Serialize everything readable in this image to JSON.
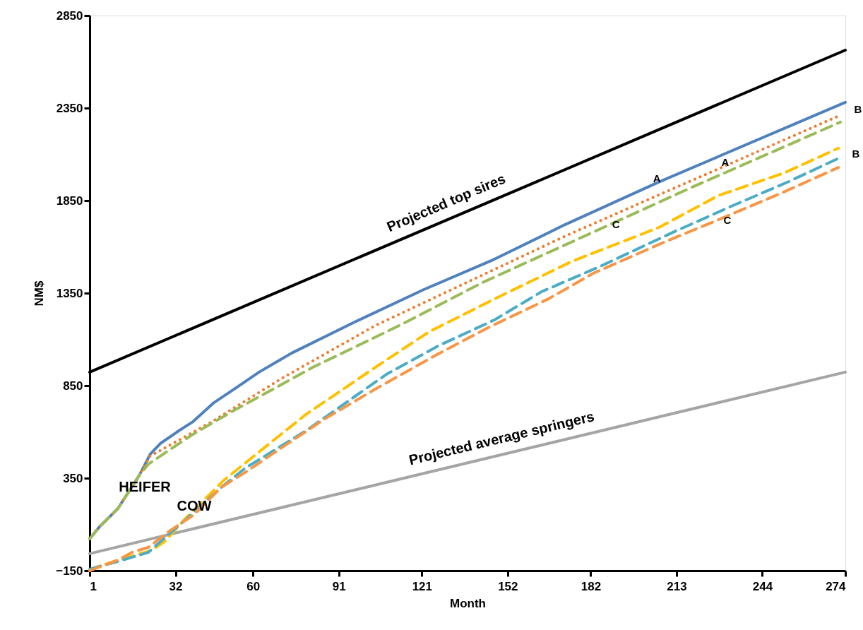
{
  "chart_data": {
    "type": "line",
    "xlabel": "Month",
    "ylabel": "NM$",
    "xlim": [
      1,
      274
    ],
    "xticks": [
      1,
      32,
      60,
      91,
      121,
      152,
      182,
      213,
      244,
      274
    ],
    "ylim": [
      -150,
      2850
    ],
    "yticks": [
      -150,
      350,
      850,
      1350,
      1850,
      2350,
      2850
    ],
    "grid": false,
    "legend": false,
    "marker": "none",
    "series": [
      {
        "name": "Projected top sires",
        "color": "#000000",
        "line_style": "solid",
        "x": [
          1,
          274
        ],
        "values": [
          923,
          2663
        ]
      },
      {
        "name": "Projected average springers",
        "color": "#a5a5a5",
        "line_style": "solid",
        "x": [
          1,
          274
        ],
        "values": [
          -58,
          923
        ]
      },
      {
        "color": "#4f81bd",
        "line_style": "solid",
        "x": [
          1,
          4.3,
          11.2,
          18.9,
          22.9,
          26.5,
          32.4,
          38.3,
          45.9,
          53.6,
          62.2,
          74,
          96.2,
          121.7,
          147.2,
          172.7,
          206.4,
          274
        ],
        "values": [
          22,
          83,
          186,
          365,
          480,
          537,
          598,
          655,
          758,
          835,
          923,
          1026,
          1190,
          1369,
          1533,
          1720,
          1949,
          2381
        ]
      },
      {
        "color": "#ed7d31",
        "line_style": "dotted",
        "x": [
          1,
          4.3,
          11.2,
          18.9,
          22.9,
          25.5,
          45.1,
          70.7,
          104.6,
          138.8,
          173.5,
          210.2,
          271.7
        ],
        "values": [
          22,
          83,
          186,
          365,
          472,
          491,
          655,
          892,
          1178,
          1419,
          1663,
          1904,
          2308
        ]
      },
      {
        "color": "#9bbb59",
        "line_style": "dashed",
        "x": [
          1,
          4.3,
          11.2,
          18.9,
          22.2,
          38.3,
          53.6,
          66.3,
          81.6,
          113.3,
          142.9,
          172.7,
          218.7,
          272.2
        ],
        "values": [
          22,
          83,
          186,
          365,
          426,
          587,
          720,
          823,
          949,
          1178,
          1407,
          1610,
          1923,
          2274
        ]
      },
      {
        "color": "#ffc000",
        "line_style": "dashed",
        "x": [
          1,
          1.8,
          11.2,
          22.9,
          28,
          34.9,
          49.5,
          61.2,
          79.1,
          103.1,
          123.5,
          149,
          175.3,
          206.7,
          228.1,
          251.8,
          271.5
        ],
        "values": [
          -150,
          -139,
          -93,
          -43,
          6,
          121,
          339,
          480,
          694,
          938,
          1140,
          1331,
          1522,
          1705,
          1877,
          1999,
          2133
        ]
      },
      {
        "color": "#4bacc6",
        "line_style": "dashed",
        "x": [
          1,
          11.2,
          22.2,
          30.6,
          38.3,
          48.5,
          57.1,
          79.1,
          108.2,
          126.8,
          147.2,
          164.3,
          185.5,
          212.8,
          234,
          253.6,
          272.2
        ],
        "values": [
          -142,
          -100,
          -51,
          60,
          159,
          300,
          403,
          606,
          911,
          1064,
          1205,
          1358,
          1495,
          1686,
          1827,
          1953,
          2083
        ]
      },
      {
        "color": "#f79646",
        "line_style": "dashed",
        "x": [
          1,
          11.2,
          16.3,
          22.2,
          29.8,
          38.3,
          48.5,
          57.9,
          67.3,
          86,
          104.6,
          126,
          145.4,
          166.9,
          182.9,
          208.5,
          228.9,
          251.1,
          271.5
        ],
        "values": [
          -150,
          -93,
          -51,
          -24,
          64,
          148,
          300,
          388,
          484,
          671,
          835,
          1014,
          1167,
          1320,
          1457,
          1625,
          1751,
          1892,
          2029
        ]
      }
    ],
    "annotations": [
      "HEIFER",
      "COW",
      {
        "text": "A",
        "x": 205.9,
        "y": 1968
      },
      "B",
      {
        "text": "C",
        "x": 191.1,
        "y": 1720
      },
      {
        "text": "A",
        "x": 230.6,
        "y": 2056
      },
      "B",
      {
        "text": "C",
        "x": 231.4,
        "y": 1743
      }
    ]
  }
}
